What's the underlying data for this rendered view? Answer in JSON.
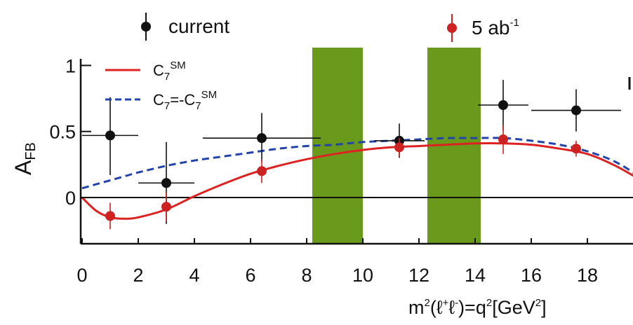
{
  "chart_data": {
    "type": "scatter",
    "title": "",
    "xlabel_parts": {
      "m": "m",
      "sq1": "2",
      "lp": "(ℓ",
      "plus": "+",
      "l2": "ℓ",
      "minus": "-",
      "eq": ")=q",
      "sq2": "2",
      "open": "[GeV",
      "sq3": "2",
      "close": "]"
    },
    "ylabel_parts": {
      "a": "A",
      "sub": "FB"
    },
    "xlim": [
      0,
      20
    ],
    "ylim": [
      -0.35,
      1.05
    ],
    "x_ticks": [
      0,
      2,
      4,
      6,
      8,
      10,
      12,
      14,
      16,
      18
    ],
    "x_tick_labels": [
      "0",
      "2",
      "4",
      "6",
      "8",
      "10",
      "12",
      "14",
      "16",
      "18"
    ],
    "y_ticks": [
      0,
      0.5,
      1
    ],
    "y_tick_labels": [
      "0",
      "0.5",
      "1"
    ],
    "grid": false,
    "zero_line": true,
    "vetoed_regions": [
      {
        "x": [
          8.2,
          10.0
        ],
        "color": "#6a9a1c"
      },
      {
        "x": [
          12.3,
          14.2
        ],
        "color": "#6a9a1c"
      }
    ],
    "series": [
      {
        "name": "current",
        "color": "#111111",
        "x": [
          1.0,
          3.0,
          6.4,
          11.3,
          15.0,
          17.6
        ],
        "y": [
          0.47,
          0.11,
          0.45,
          0.43,
          0.7,
          0.66
        ],
        "xerr": [
          [
            1.0,
            1.0
          ],
          [
            1.0,
            1.0
          ],
          [
            2.1,
            2.1
          ],
          [
            0.9,
            0.9
          ],
          [
            0.9,
            0.9
          ],
          [
            1.6,
            1.6
          ]
        ],
        "yerr": [
          [
            0.3,
            0.29
          ],
          [
            0.31,
            0.31
          ],
          [
            0.18,
            0.19
          ],
          [
            0.13,
            0.13
          ],
          [
            0.19,
            0.19
          ],
          [
            0.16,
            0.16
          ]
        ]
      },
      {
        "name_parts": {
          "base": "5 ab",
          "sup": "-1"
        },
        "color": "#cc2222",
        "x": [
          1.0,
          3.0,
          6.4,
          11.3,
          15.0,
          17.6
        ],
        "y": [
          -0.14,
          -0.07,
          0.2,
          0.38,
          0.44,
          0.37
        ],
        "yerr": [
          [
            0.1,
            0.1
          ],
          [
            0.11,
            0.11
          ],
          [
            0.09,
            0.09
          ],
          [
            0.07,
            0.07
          ],
          [
            0.11,
            0.11
          ],
          [
            0.06,
            0.06
          ]
        ]
      }
    ],
    "curves": [
      {
        "legend_parts": {
          "c": "C",
          "sub": "7",
          "sup": "SM"
        },
        "color": "#dd2222",
        "style": "solid",
        "x": [
          0,
          0.5,
          1.0,
          1.5,
          2.0,
          3.0,
          4.0,
          5.0,
          6.0,
          7.0,
          8.0,
          9.0,
          10.0,
          11.0,
          12.0,
          13.0,
          14.0,
          15.0,
          16.0,
          17.0,
          18.0,
          19.0,
          20.0
        ],
        "y": [
          0.0,
          -0.1,
          -0.15,
          -0.16,
          -0.15,
          -0.09,
          0.01,
          0.1,
          0.18,
          0.24,
          0.29,
          0.33,
          0.36,
          0.38,
          0.39,
          0.4,
          0.41,
          0.41,
          0.4,
          0.37,
          0.33,
          0.24,
          0.12
        ]
      },
      {
        "legend_parts": {
          "c1": "C",
          "sub1": "7",
          "eq": "=-C",
          "sub2": "7",
          "sup": "SM"
        },
        "color": "#2244aa",
        "style": "dashed",
        "x": [
          0,
          0.5,
          1.0,
          1.5,
          2.0,
          3.0,
          4.0,
          5.0,
          6.0,
          7.0,
          8.0,
          9.0,
          10.0,
          11.0,
          12.0,
          13.0,
          14.0,
          15.0,
          16.0,
          17.0,
          18.0,
          19.0,
          20.0
        ],
        "y": [
          0.07,
          0.1,
          0.13,
          0.16,
          0.19,
          0.24,
          0.28,
          0.31,
          0.34,
          0.37,
          0.39,
          0.4,
          0.42,
          0.43,
          0.44,
          0.45,
          0.45,
          0.45,
          0.43,
          0.4,
          0.35,
          0.27,
          0.14
        ]
      }
    ]
  }
}
